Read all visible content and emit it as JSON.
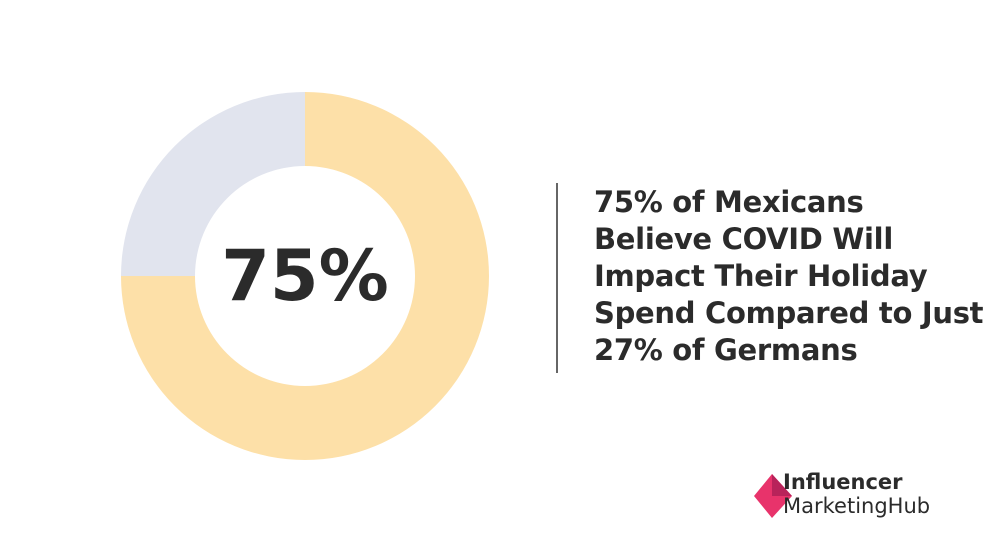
{
  "chart_data": {
    "type": "donut",
    "values": [
      75,
      25
    ],
    "value_labels": [
      "75%",
      null
    ],
    "colors": [
      "#fde0a8",
      "#e1e4ee"
    ],
    "title": "75% of Mexicans Believe COVID Will Impact Their Holiday Spend Compared to Just 27% of Germans"
  },
  "logo": {
    "line1": "Influencer",
    "line2": "MarketingHub"
  }
}
